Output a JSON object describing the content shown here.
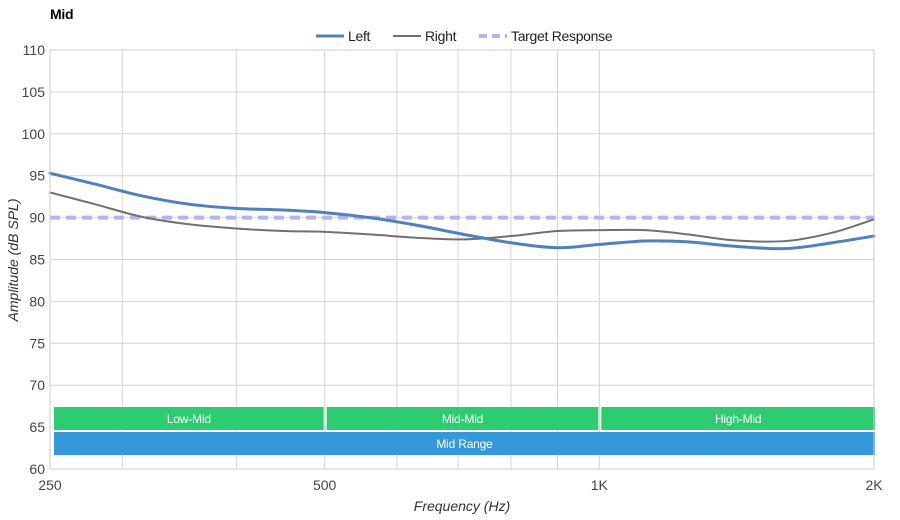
{
  "chart_data": {
    "type": "line",
    "title": "Mid",
    "xlabel": "Frequency (Hz)",
    "ylabel": "Amplitude (dB SPL)",
    "x_scale": "log",
    "xlim": [
      250,
      2000
    ],
    "ylim": [
      60,
      110
    ],
    "x_ticks": [
      {
        "value": 250,
        "label": "250"
      },
      {
        "value": 500,
        "label": "500"
      },
      {
        "value": 1000,
        "label": "1K"
      },
      {
        "value": 2000,
        "label": "2K"
      }
    ],
    "x_gridlines": [
      250,
      300,
      400,
      500,
      600,
      700,
      800,
      900,
      1000,
      2000
    ],
    "y_ticks": [
      60,
      65,
      70,
      75,
      80,
      85,
      90,
      95,
      100,
      105,
      110
    ],
    "grid": true,
    "legend": "top-center",
    "series": [
      {
        "name": "Left",
        "color": "#4f81bd",
        "style": "solid-thick",
        "x": [
          250,
          280,
          315,
          355,
          400,
          450,
          500,
          560,
          630,
          710,
          800,
          900,
          1000,
          1120,
          1250,
          1400,
          1600,
          1800,
          2000
        ],
        "y": [
          95.3,
          94.0,
          92.6,
          91.6,
          91.1,
          90.9,
          90.6,
          90.0,
          89.1,
          88.0,
          87.0,
          86.4,
          86.8,
          87.2,
          87.1,
          86.6,
          86.3,
          87.0,
          87.8
        ]
      },
      {
        "name": "Right",
        "color": "#707070",
        "style": "solid",
        "x": [
          250,
          280,
          315,
          355,
          400,
          450,
          500,
          560,
          630,
          710,
          800,
          900,
          1000,
          1120,
          1250,
          1400,
          1600,
          1800,
          2000
        ],
        "y": [
          93.0,
          91.6,
          90.1,
          89.2,
          88.7,
          88.4,
          88.3,
          88.0,
          87.6,
          87.4,
          87.8,
          88.4,
          88.5,
          88.5,
          88.0,
          87.3,
          87.2,
          88.2,
          89.8
        ]
      },
      {
        "name": "Target Response",
        "color": "#b4b4f5",
        "style": "dashed",
        "x": [
          250,
          2000
        ],
        "y": [
          90.0,
          90.0
        ]
      }
    ],
    "bands": [
      {
        "label": "Low-Mid",
        "from": 250,
        "to": 500,
        "row": 1,
        "color": "#2ecc71"
      },
      {
        "label": "Mid-Mid",
        "from": 500,
        "to": 1000,
        "row": 1,
        "color": "#2ecc71"
      },
      {
        "label": "High-Mid",
        "from": 1000,
        "to": 2000,
        "row": 1,
        "color": "#2ecc71"
      },
      {
        "label": "Mid Range",
        "from": 250,
        "to": 2000,
        "row": 2,
        "color": "#3498db"
      }
    ]
  }
}
